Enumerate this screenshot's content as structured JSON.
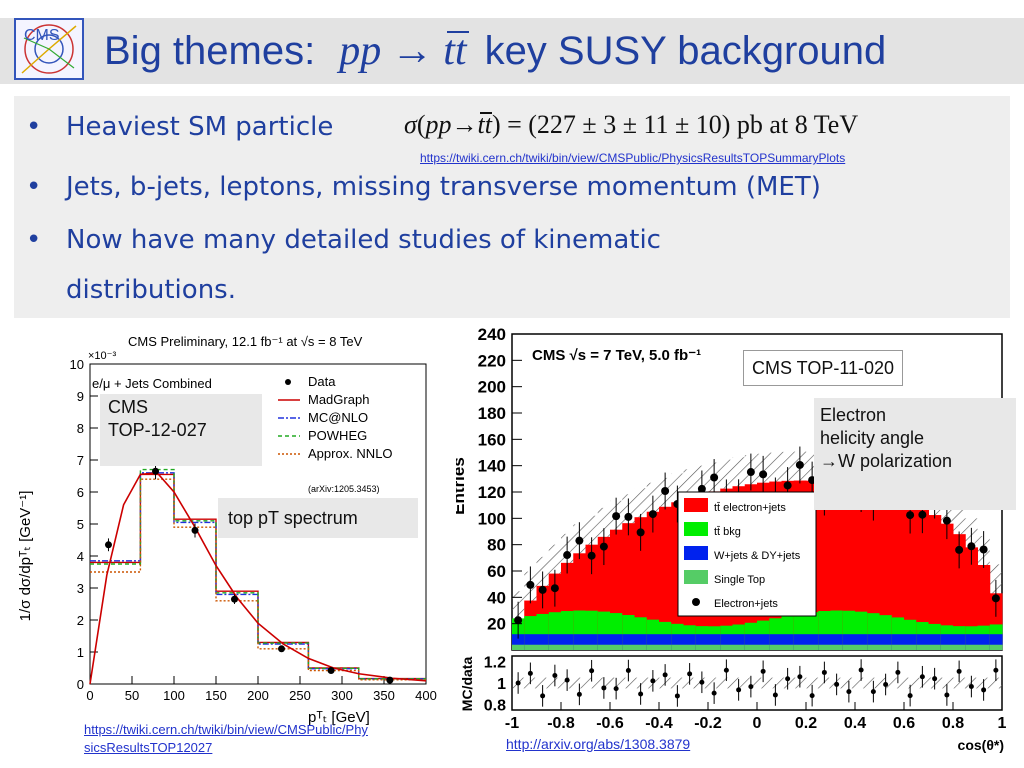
{
  "slide": {
    "title_prefix": "Big themes:",
    "title_math_pp": "pp",
    "title_math_arrow": "→",
    "title_math_tt": "tt",
    "title_suffix": "key SUSY background",
    "logo_text": "CMS"
  },
  "bullets": [
    {
      "text": "Heaviest SM particle"
    },
    {
      "text": "Jets, b-jets, leptons, missing transverse momentum (MET)"
    },
    {
      "text": "Now have many detailed studies of kinematic"
    },
    {
      "text": "distributions."
    }
  ],
  "bullet_symbol": "•",
  "formula": {
    "sigma": "σ",
    "open": "(",
    "pp": "pp",
    "arrow": "→",
    "tt": "tt",
    "rest": ") = (227 ± 3 ± 11 ± 10) pb at 8 TeV"
  },
  "links": {
    "summary": "https://twiki.cern.ch/twiki/bin/view/CMSPublic/PhysicsResultsTOPSummaryPlots",
    "top12027_line1": "https://twiki.cern.ch/twiki/bin/view/CMSPublic/Phy",
    "top12027_line2": "sicsResultsTOP12027",
    "arxiv": "http://arxiv.org/abs/1308.3879"
  },
  "callouts": {
    "left_cms_line1": "CMS",
    "left_cms_line2": "TOP-12-027",
    "top_pt": "top pT spectrum",
    "right_cms": "CMS TOP-11-020",
    "electron_line1": "Electron",
    "electron_line2": "helicity angle",
    "electron_line3": "→W polarization"
  },
  "chart_data": [
    {
      "type": "line",
      "title": "CMS Preliminary, 12.1 fb⁻¹ at √s = 8 TeV",
      "xlabel": "pᵀₜ [GeV]",
      "ylabel": "1/σ dσ/dpᵀₜ [GeV⁻¹]",
      "y_multiplier": "×10⁻³",
      "xlim": [
        0,
        400
      ],
      "ylim": [
        0,
        10
      ],
      "x_ticks": [
        0,
        50,
        100,
        150,
        200,
        250,
        300,
        350,
        400
      ],
      "y_ticks": [
        0,
        1,
        2,
        3,
        4,
        5,
        6,
        7,
        8,
        9,
        10
      ],
      "legend_header": "e/μ + Jets Combined",
      "legend_note": "(arXiv:1205.3453)",
      "legend_position": "top-right",
      "bin_edges": [
        0,
        60,
        100,
        150,
        200,
        260,
        320,
        400
      ],
      "series": [
        {
          "name": "Data",
          "color": "#000000",
          "x": [
            22,
            78,
            125,
            172,
            228,
            287,
            357
          ],
          "values": [
            4.35,
            6.65,
            4.8,
            2.65,
            1.1,
            0.42,
            0.12
          ],
          "errors": [
            0.2,
            0.25,
            0.22,
            0.15,
            0.08,
            0.05,
            0.03
          ]
        },
        {
          "name": "MadGraph",
          "color": "#cc0000",
          "values": [
            3.8,
            6.55,
            5.15,
            2.9,
            1.3,
            0.5,
            0.17
          ]
        },
        {
          "name": "MC@NLO",
          "color": "#2233dd",
          "values": [
            3.85,
            6.6,
            5.05,
            2.8,
            1.25,
            0.48,
            0.16
          ]
        },
        {
          "name": "POWHEG",
          "color": "#22aa22",
          "values": [
            3.75,
            6.7,
            5.1,
            2.85,
            1.28,
            0.49,
            0.16
          ]
        },
        {
          "name": "Approx. NNLO",
          "color": "#cc5500",
          "values": [
            3.5,
            6.4,
            4.9,
            2.6,
            1.1,
            0.42,
            0.13
          ]
        }
      ]
    },
    {
      "type": "bar",
      "title": "CMS √s = 7 TeV, 5.0 fb⁻¹",
      "xlabel": "cos(θ*)",
      "ylabel": "Entries",
      "ratio_ylabel": "MC/data",
      "xlim": [
        -1,
        1
      ],
      "ylim": [
        0,
        240
      ],
      "ratio_ylim": [
        0.8,
        1.2
      ],
      "x_ticks": [
        -1,
        -0.8,
        -0.6,
        -0.4,
        -0.2,
        0,
        0.2,
        0.4,
        0.6,
        0.8,
        1
      ],
      "y_ticks": [
        20,
        40,
        60,
        80,
        100,
        120,
        140,
        160,
        180,
        200,
        220,
        240
      ],
      "ratio_ticks": [
        0.8,
        1,
        1.2
      ],
      "legend_position": "center",
      "series": [
        {
          "name": "tt̄ electron+jets",
          "color": "#ff0000"
        },
        {
          "name": "tt̄ bkg",
          "color": "#00ee00"
        },
        {
          "name": "W+jets & DY+jets",
          "color": "#0022ee"
        },
        {
          "name": "Single Top",
          "color": "#55cc66"
        },
        {
          "name": "Electron+jets",
          "color": "#000000"
        }
      ]
    }
  ]
}
